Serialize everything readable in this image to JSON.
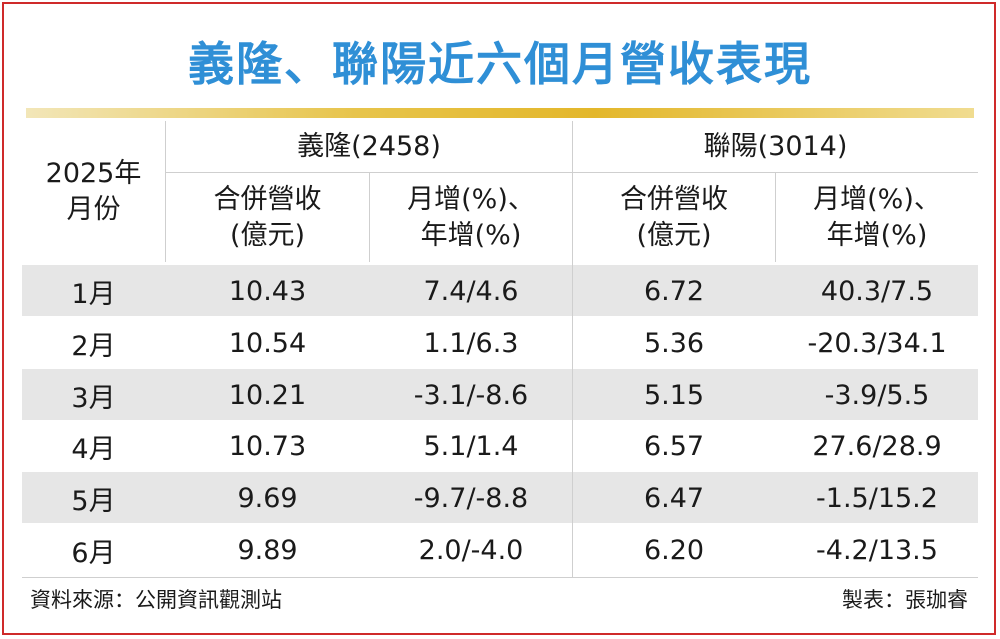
{
  "title": "義隆、聯陽近六個月營收表現",
  "header": {
    "period_label_line1": "2025年",
    "period_label_line2": "月份",
    "company1": "義隆(2458)",
    "company2": "聯陽(3014)",
    "revenue_label_line1": "合併營收",
    "revenue_label_line2": "(億元)",
    "growth_label_line1": "月增(%)、",
    "growth_label_line2": "年增(%)"
  },
  "rows": [
    {
      "month": "1月",
      "c1_revenue": "10.43",
      "c1_growth": "7.4/4.6",
      "c2_revenue": "6.72",
      "c2_growth": "40.3/7.5"
    },
    {
      "month": "2月",
      "c1_revenue": "10.54",
      "c1_growth": "1.1/6.3",
      "c2_revenue": "5.36",
      "c2_growth": "-20.3/34.1"
    },
    {
      "month": "3月",
      "c1_revenue": "10.21",
      "c1_growth": "-3.1/-8.6",
      "c2_revenue": "5.15",
      "c2_growth": "-3.9/5.5"
    },
    {
      "month": "4月",
      "c1_revenue": "10.73",
      "c1_growth": "5.1/1.4",
      "c2_revenue": "6.57",
      "c2_growth": "27.6/28.9"
    },
    {
      "month": "5月",
      "c1_revenue": "9.69",
      "c1_growth": "-9.7/-8.8",
      "c2_revenue": "6.47",
      "c2_growth": "-1.5/15.2"
    },
    {
      "month": "6月",
      "c1_revenue": "9.89",
      "c1_growth": "2.0/-4.0",
      "c2_revenue": "6.20",
      "c2_growth": "-4.2/13.5"
    }
  ],
  "footer": {
    "source": "資料來源：公開資訊觀測站",
    "credit": "製表：張珈睿"
  },
  "colors": {
    "title": "#2f8fd6",
    "frame": "#cf2a2a",
    "stripe": "#e6e6e6",
    "gold_bar": "#e3b72b"
  }
}
